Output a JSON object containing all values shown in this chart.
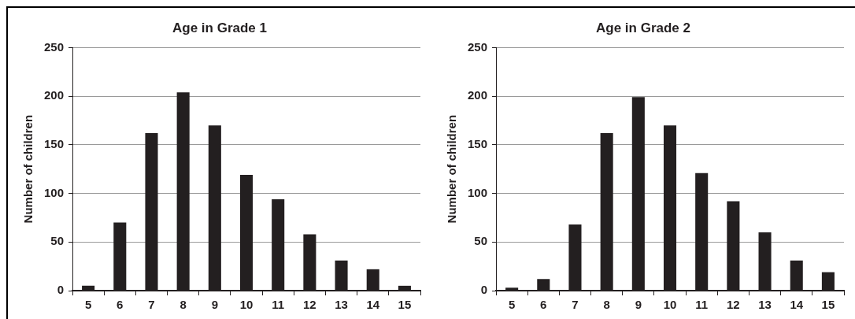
{
  "chart_data": [
    {
      "type": "bar",
      "title": "Age in Grade 1",
      "ylabel": "Number of children",
      "categories": [
        "5",
        "6",
        "7",
        "8",
        "9",
        "10",
        "11",
        "12",
        "13",
        "14",
        "15"
      ],
      "values": [
        5,
        70,
        162,
        204,
        170,
        119,
        94,
        58,
        31,
        22,
        5
      ],
      "color": "#231f20",
      "ylim": [
        0,
        250
      ],
      "yticks": [
        0,
        50,
        100,
        150,
        200,
        250
      ],
      "grid": "y",
      "legend": false
    },
    {
      "type": "bar",
      "title": "Age in Grade 2",
      "ylabel": "Number of children",
      "categories": [
        "5",
        "6",
        "7",
        "8",
        "9",
        "10",
        "11",
        "12",
        "13",
        "14",
        "15"
      ],
      "values": [
        3,
        12,
        68,
        162,
        199,
        170,
        121,
        92,
        60,
        31,
        19
      ],
      "color": "#231f20",
      "ylim": [
        0,
        250
      ],
      "yticks": [
        0,
        50,
        100,
        150,
        200,
        250
      ],
      "grid": "y",
      "legend": false
    }
  ]
}
